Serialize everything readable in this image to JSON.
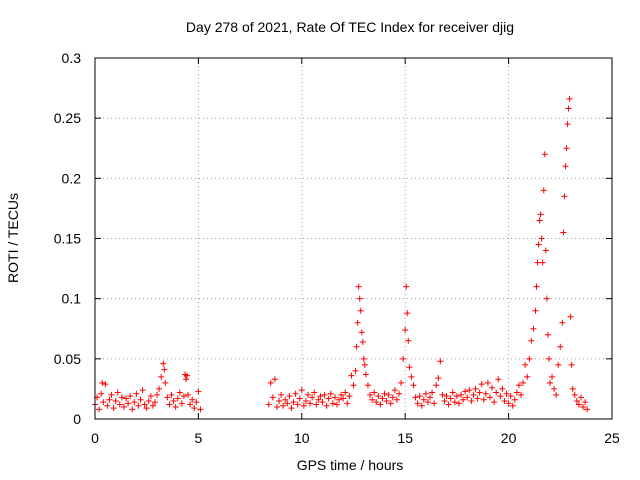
{
  "chart_data": {
    "type": "scatter",
    "title": "Day 278 of 2021, Rate Of TEC Index for receiver djig",
    "xlabel": "GPS time / hours",
    "ylabel": "ROTI / TECUs",
    "xlim": [
      0,
      25
    ],
    "ylim": [
      0,
      0.3
    ],
    "xticks": [
      0,
      5,
      10,
      15,
      20,
      25
    ],
    "yticks": [
      0,
      0.05,
      0.1,
      0.15,
      0.2,
      0.25,
      0.3
    ],
    "xtick_labels": [
      "0",
      "5",
      "10",
      "15",
      "20",
      "25"
    ],
    "ytick_labels": [
      "0",
      "0.05",
      "0.1",
      "0.15",
      "0.2",
      "0.25",
      "0.3"
    ],
    "grid": true,
    "marker": "+",
    "color": "#ff0000",
    "series": [
      {
        "name": "ROTI",
        "points": [
          [
            0.0,
            0.012
          ],
          [
            0.1,
            0.018
          ],
          [
            0.2,
            0.008
          ],
          [
            0.3,
            0.021
          ],
          [
            0.35,
            0.03
          ],
          [
            0.4,
            0.014
          ],
          [
            0.5,
            0.029
          ],
          [
            0.6,
            0.011
          ],
          [
            0.7,
            0.016
          ],
          [
            0.8,
            0.02
          ],
          [
            0.9,
            0.009
          ],
          [
            1.0,
            0.015
          ],
          [
            1.1,
            0.022
          ],
          [
            1.2,
            0.012
          ],
          [
            1.3,
            0.018
          ],
          [
            1.4,
            0.01
          ],
          [
            1.5,
            0.017
          ],
          [
            1.6,
            0.013
          ],
          [
            1.7,
            0.019
          ],
          [
            1.8,
            0.008
          ],
          [
            1.9,
            0.014
          ],
          [
            2.0,
            0.021
          ],
          [
            2.1,
            0.011
          ],
          [
            2.2,
            0.016
          ],
          [
            2.3,
            0.024
          ],
          [
            2.4,
            0.012
          ],
          [
            2.5,
            0.009
          ],
          [
            2.6,
            0.015
          ],
          [
            2.7,
            0.019
          ],
          [
            2.8,
            0.011
          ],
          [
            2.9,
            0.014
          ],
          [
            3.0,
            0.02
          ],
          [
            3.1,
            0.025
          ],
          [
            3.2,
            0.035
          ],
          [
            3.3,
            0.046
          ],
          [
            3.35,
            0.041
          ],
          [
            3.4,
            0.03
          ],
          [
            3.5,
            0.018
          ],
          [
            3.6,
            0.012
          ],
          [
            3.7,
            0.02
          ],
          [
            3.8,
            0.015
          ],
          [
            3.9,
            0.01
          ],
          [
            4.0,
            0.017
          ],
          [
            4.1,
            0.022
          ],
          [
            4.2,
            0.013
          ],
          [
            4.3,
            0.019
          ],
          [
            4.35,
            0.037
          ],
          [
            4.4,
            0.033
          ],
          [
            4.45,
            0.036
          ],
          [
            4.5,
            0.02
          ],
          [
            4.6,
            0.012
          ],
          [
            4.7,
            0.016
          ],
          [
            4.8,
            0.009
          ],
          [
            4.9,
            0.014
          ],
          [
            5.0,
            0.023
          ],
          [
            5.1,
            0.008
          ],
          [
            8.4,
            0.012
          ],
          [
            8.5,
            0.03
          ],
          [
            8.6,
            0.018
          ],
          [
            8.7,
            0.033
          ],
          [
            8.8,
            0.01
          ],
          [
            8.9,
            0.015
          ],
          [
            9.0,
            0.02
          ],
          [
            9.1,
            0.011
          ],
          [
            9.2,
            0.016
          ],
          [
            9.3,
            0.013
          ],
          [
            9.4,
            0.019
          ],
          [
            9.5,
            0.009
          ],
          [
            9.6,
            0.014
          ],
          [
            9.7,
            0.021
          ],
          [
            9.8,
            0.012
          ],
          [
            9.9,
            0.017
          ],
          [
            10.0,
            0.024
          ],
          [
            10.1,
            0.011
          ],
          [
            10.2,
            0.015
          ],
          [
            10.3,
            0.02
          ],
          [
            10.4,
            0.013
          ],
          [
            10.5,
            0.018
          ],
          [
            10.6,
            0.022
          ],
          [
            10.7,
            0.012
          ],
          [
            10.8,
            0.016
          ],
          [
            10.9,
            0.019
          ],
          [
            11.0,
            0.014
          ],
          [
            11.1,
            0.02
          ],
          [
            11.2,
            0.011
          ],
          [
            11.3,
            0.017
          ],
          [
            11.4,
            0.021
          ],
          [
            11.5,
            0.013
          ],
          [
            11.6,
            0.018
          ],
          [
            11.7,
            0.012
          ],
          [
            11.8,
            0.016
          ],
          [
            11.9,
            0.02
          ],
          [
            12.0,
            0.017
          ],
          [
            12.1,
            0.022
          ],
          [
            12.2,
            0.013
          ],
          [
            12.3,
            0.019
          ],
          [
            12.4,
            0.036
          ],
          [
            12.5,
            0.028
          ],
          [
            12.6,
            0.04
          ],
          [
            12.65,
            0.06
          ],
          [
            12.7,
            0.08
          ],
          [
            12.75,
            0.11
          ],
          [
            12.8,
            0.1
          ],
          [
            12.85,
            0.09
          ],
          [
            12.9,
            0.072
          ],
          [
            12.95,
            0.064
          ],
          [
            13.0,
            0.05
          ],
          [
            13.05,
            0.045
          ],
          [
            13.1,
            0.037
          ],
          [
            13.2,
            0.028
          ],
          [
            13.3,
            0.02
          ],
          [
            13.4,
            0.016
          ],
          [
            13.5,
            0.022
          ],
          [
            13.6,
            0.014
          ],
          [
            13.7,
            0.019
          ],
          [
            13.8,
            0.012
          ],
          [
            13.9,
            0.017
          ],
          [
            14.0,
            0.021
          ],
          [
            14.1,
            0.015
          ],
          [
            14.2,
            0.02
          ],
          [
            14.3,
            0.013
          ],
          [
            14.4,
            0.018
          ],
          [
            14.5,
            0.024
          ],
          [
            14.6,
            0.016
          ],
          [
            14.7,
            0.021
          ],
          [
            14.8,
            0.03
          ],
          [
            14.9,
            0.05
          ],
          [
            15.0,
            0.074
          ],
          [
            15.05,
            0.11
          ],
          [
            15.1,
            0.088
          ],
          [
            15.15,
            0.065
          ],
          [
            15.2,
            0.043
          ],
          [
            15.3,
            0.035
          ],
          [
            15.4,
            0.028
          ],
          [
            15.5,
            0.018
          ],
          [
            15.6,
            0.013
          ],
          [
            15.7,
            0.019
          ],
          [
            15.8,
            0.011
          ],
          [
            15.9,
            0.016
          ],
          [
            16.0,
            0.021
          ],
          [
            16.1,
            0.014
          ],
          [
            16.2,
            0.018
          ],
          [
            16.3,
            0.022
          ],
          [
            16.4,
            0.013
          ],
          [
            16.5,
            0.028
          ],
          [
            16.6,
            0.034
          ],
          [
            16.7,
            0.048
          ],
          [
            16.8,
            0.02
          ],
          [
            16.9,
            0.015
          ],
          [
            17.0,
            0.019
          ],
          [
            17.1,
            0.012
          ],
          [
            17.2,
            0.017
          ],
          [
            17.3,
            0.022
          ],
          [
            17.4,
            0.014
          ],
          [
            17.5,
            0.019
          ],
          [
            17.6,
            0.013
          ],
          [
            17.7,
            0.02
          ],
          [
            17.8,
            0.016
          ],
          [
            17.9,
            0.023
          ],
          [
            18.0,
            0.018
          ],
          [
            18.1,
            0.024
          ],
          [
            18.2,
            0.015
          ],
          [
            18.3,
            0.02
          ],
          [
            18.4,
            0.025
          ],
          [
            18.5,
            0.017
          ],
          [
            18.6,
            0.022
          ],
          [
            18.7,
            0.029
          ],
          [
            18.8,
            0.016
          ],
          [
            18.9,
            0.021
          ],
          [
            19.0,
            0.03
          ],
          [
            19.1,
            0.018
          ],
          [
            19.2,
            0.026
          ],
          [
            19.3,
            0.014
          ],
          [
            19.4,
            0.022
          ],
          [
            19.5,
            0.033
          ],
          [
            19.6,
            0.019
          ],
          [
            19.7,
            0.025
          ],
          [
            19.8,
            0.015
          ],
          [
            19.9,
            0.021
          ],
          [
            20.0,
            0.013
          ],
          [
            20.1,
            0.019
          ],
          [
            20.2,
            0.011
          ],
          [
            20.3,
            0.016
          ],
          [
            20.4,
            0.022
          ],
          [
            20.5,
            0.028
          ],
          [
            20.6,
            0.02
          ],
          [
            20.7,
            0.03
          ],
          [
            20.8,
            0.045
          ],
          [
            20.9,
            0.035
          ],
          [
            21.0,
            0.05
          ],
          [
            21.1,
            0.065
          ],
          [
            21.2,
            0.075
          ],
          [
            21.3,
            0.09
          ],
          [
            21.35,
            0.11
          ],
          [
            21.4,
            0.13
          ],
          [
            21.45,
            0.145
          ],
          [
            21.5,
            0.165
          ],
          [
            21.55,
            0.17
          ],
          [
            21.6,
            0.15
          ],
          [
            21.65,
            0.13
          ],
          [
            21.7,
            0.19
          ],
          [
            21.75,
            0.22
          ],
          [
            21.8,
            0.14
          ],
          [
            21.85,
            0.1
          ],
          [
            21.9,
            0.07
          ],
          [
            21.95,
            0.05
          ],
          [
            22.0,
            0.03
          ],
          [
            22.1,
            0.035
          ],
          [
            22.2,
            0.025
          ],
          [
            22.3,
            0.02
          ],
          [
            22.4,
            0.045
          ],
          [
            22.5,
            0.06
          ],
          [
            22.6,
            0.08
          ],
          [
            22.65,
            0.155
          ],
          [
            22.7,
            0.185
          ],
          [
            22.75,
            0.21
          ],
          [
            22.8,
            0.225
          ],
          [
            22.85,
            0.245
          ],
          [
            22.9,
            0.258
          ],
          [
            22.95,
            0.266
          ],
          [
            23.0,
            0.085
          ],
          [
            23.05,
            0.045
          ],
          [
            23.1,
            0.025
          ],
          [
            23.2,
            0.02
          ],
          [
            23.3,
            0.015
          ],
          [
            23.4,
            0.012
          ],
          [
            23.5,
            0.018
          ],
          [
            23.6,
            0.01
          ],
          [
            23.7,
            0.014
          ],
          [
            23.8,
            0.008
          ]
        ]
      }
    ]
  }
}
